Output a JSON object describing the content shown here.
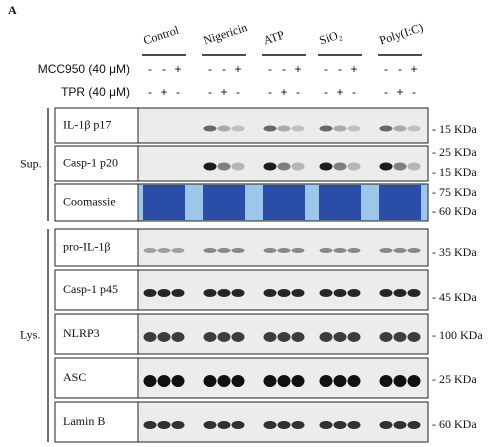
{
  "panel_label": "A",
  "groups": [
    "Control",
    "Nigericin",
    "ATP",
    "SiO₂",
    "Poly(I:C)"
  ],
  "treatments": [
    {
      "label": "MCC950 (40 μM)",
      "signs": [
        [
          "-",
          "-",
          "+"
        ],
        [
          "-",
          "-",
          "+"
        ],
        [
          "-",
          "-",
          "+"
        ],
        [
          "-",
          "-",
          "+"
        ],
        [
          "-",
          "-",
          "+"
        ]
      ]
    },
    {
      "label": "TPR (40 μM)",
      "signs": [
        [
          "-",
          "+",
          "-"
        ],
        [
          "-",
          "+",
          "-"
        ],
        [
          "-",
          "+",
          "-"
        ],
        [
          "-",
          "+",
          "-"
        ],
        [
          "-",
          "+",
          "-"
        ]
      ]
    }
  ],
  "sections": [
    {
      "label": "Sup.",
      "blots": [
        {
          "label": "IL-1β p17",
          "markers": [
            "- 15 KDa"
          ]
        },
        {
          "label": "Casp-1 p20",
          "markers": [
            "- 25 KDa",
            "- 15 KDa"
          ]
        },
        {
          "label": "Coomassie",
          "markers": [
            "- 75 KDa",
            "- 60 KDa"
          ]
        }
      ]
    },
    {
      "label": "Lys.",
      "blots": [
        {
          "label": "pro-IL-1β",
          "markers": [
            "- 35 KDa"
          ]
        },
        {
          "label": "Casp-1 p45",
          "markers": [
            "- 45 KDa"
          ]
        },
        {
          "label": "NLRP3",
          "markers": [
            "- 100 KDa"
          ]
        },
        {
          "label": "ASC",
          "markers": [
            "- 25 KDa"
          ]
        },
        {
          "label": "Lamin B",
          "markers": [
            "- 60 KDa"
          ]
        }
      ]
    }
  ]
}
